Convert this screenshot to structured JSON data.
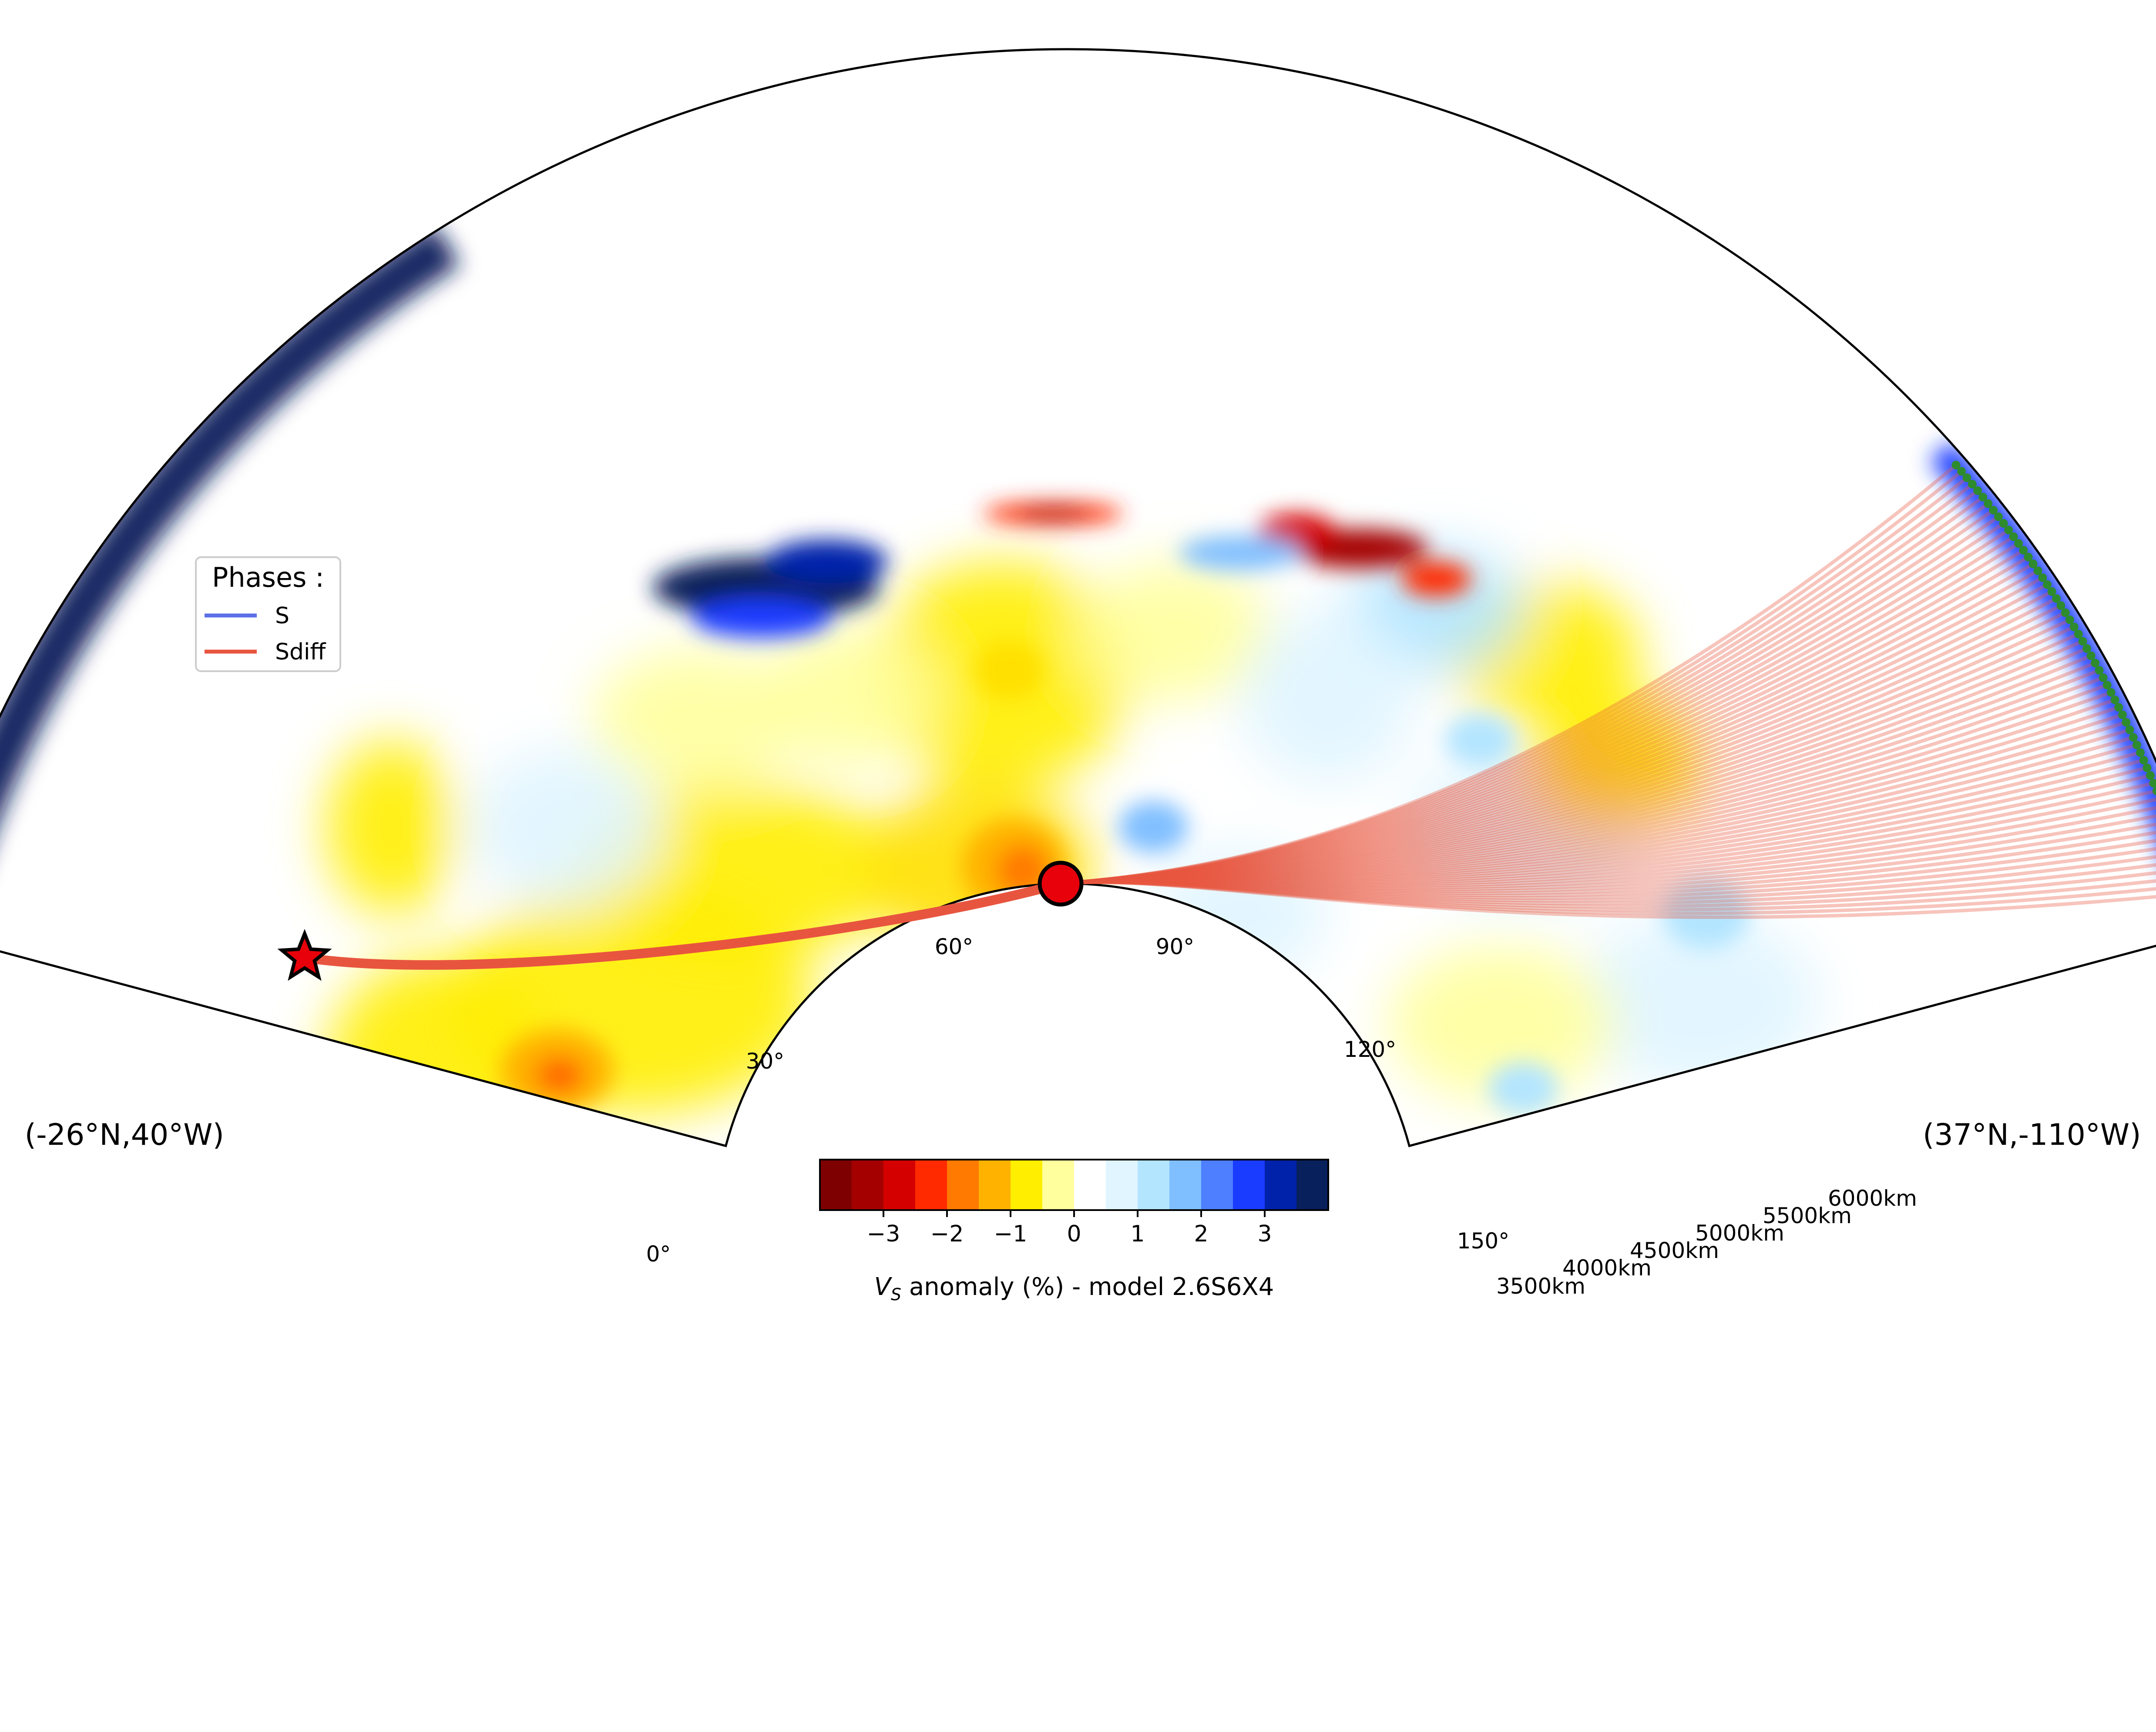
{
  "chart_data": {
    "type": "polar-section",
    "endpoints": {
      "left": "(-26°N,40°W)",
      "right": "(37°N,-110°W)"
    },
    "angle_ticks": [
      "0°",
      "30°",
      "60°",
      "90°",
      "120°",
      "150°"
    ],
    "radius_ticks": [
      "3500km",
      "4000km",
      "4500km",
      "5000km",
      "5500km",
      "6000km"
    ],
    "legend": {
      "title": "Phases :",
      "items": [
        {
          "label": "S",
          "color": "#5b6fe6"
        },
        {
          "label": "Sdiff",
          "color": "#e8553f"
        }
      ]
    },
    "colorbar": {
      "ticks": [
        "−3",
        "−2",
        "−1",
        "0",
        "1",
        "2",
        "3"
      ],
      "tick_values": [
        -3,
        -2,
        -1,
        0,
        1,
        2,
        3
      ],
      "range": [
        -4,
        4
      ],
      "label_symbol": "V",
      "label_subscript": "S",
      "label_rest": " anomaly (%) - model 2.6S6X4",
      "colors": [
        "#7f0000",
        "#a50000",
        "#d40000",
        "#ff2a00",
        "#ff7a00",
        "#ffb300",
        "#ffee00",
        "#ffff9e",
        "#ffffff",
        "#e0f5ff",
        "#b3e5ff",
        "#80bfff",
        "#4d7fff",
        "#1a3cff",
        "#0022aa",
        "#08205c"
      ]
    },
    "phases": [
      {
        "name": "Sdiff",
        "color": "#e8553f",
        "ray_count": 60
      },
      {
        "name": "S",
        "color": "#5b6fe6",
        "ray_count": 0
      }
    ],
    "source": {
      "marker": "star",
      "color": "#e8000b"
    },
    "stations": {
      "marker": "circle",
      "color": "#2e8b2e"
    }
  }
}
